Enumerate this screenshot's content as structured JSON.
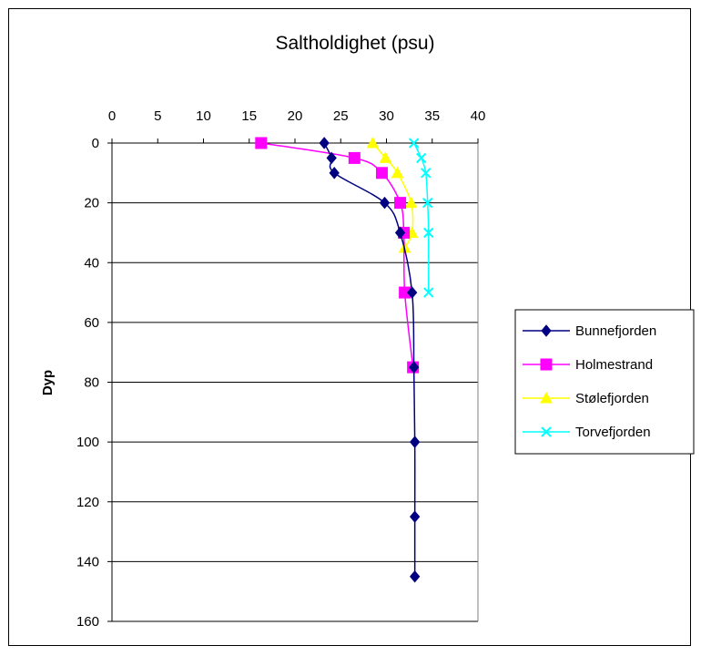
{
  "chart_data": {
    "type": "line",
    "title": "Saltholdighet (psu)",
    "xlabel": "",
    "ylabel": "Dyp",
    "x_position": "top",
    "y_inverted": true,
    "xlim": [
      0,
      40
    ],
    "ylim": [
      0,
      160
    ],
    "x_ticks": [
      0,
      5,
      10,
      15,
      20,
      25,
      30,
      35,
      40
    ],
    "y_ticks": [
      0,
      20,
      40,
      60,
      80,
      100,
      120,
      140,
      160
    ],
    "grid": "horizontal",
    "legend_position": "right",
    "series": [
      {
        "name": "Bunnefjorden",
        "color": "#000080",
        "marker": "diamond",
        "points": [
          [
            23.2,
            0
          ],
          [
            24.0,
            5
          ],
          [
            24.3,
            10
          ],
          [
            29.8,
            20
          ],
          [
            31.5,
            30
          ],
          [
            32.8,
            50
          ],
          [
            33.0,
            75
          ],
          [
            33.1,
            100
          ],
          [
            33.1,
            125
          ],
          [
            33.1,
            145
          ]
        ]
      },
      {
        "name": "Holmestrand",
        "color": "#FF00FF",
        "marker": "square",
        "points": [
          [
            16.3,
            0
          ],
          [
            26.5,
            5
          ],
          [
            29.5,
            10
          ],
          [
            31.5,
            20
          ],
          [
            31.9,
            30
          ],
          [
            32.0,
            50
          ],
          [
            32.9,
            75
          ]
        ]
      },
      {
        "name": "Stølefjorden",
        "color": "#FFFF00",
        "marker": "triangle",
        "points": [
          [
            28.5,
            0
          ],
          [
            29.9,
            5
          ],
          [
            31.2,
            10
          ],
          [
            32.7,
            20
          ],
          [
            32.8,
            30
          ],
          [
            32.0,
            35
          ]
        ]
      },
      {
        "name": "Torvefjorden",
        "color": "#00FFFF",
        "marker": "x",
        "points": [
          [
            33.0,
            0
          ],
          [
            33.8,
            5
          ],
          [
            34.3,
            10
          ],
          [
            34.5,
            20
          ],
          [
            34.6,
            30
          ],
          [
            34.6,
            50
          ]
        ]
      }
    ]
  }
}
